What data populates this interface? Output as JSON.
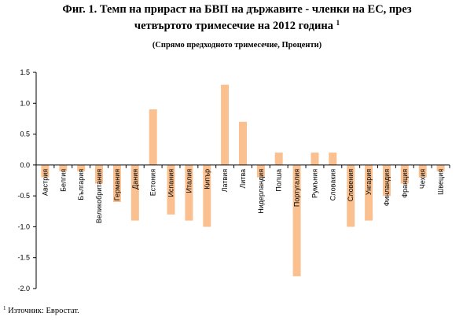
{
  "title_line1": "Фиг. 1. Темп на прираст на БВП на държавите - членки на ЕС, през",
  "title_line2": "четвъртото тримесечие на 2012 година",
  "title_sup": "1",
  "subtitle": "(Спрямо предходното тримесечие, Проценти)",
  "footnote_mark": "1",
  "footnote_text": " Източник: Евростат.",
  "colors": {
    "bar": "#FAC090",
    "axis": "#000000"
  },
  "chart_data": {
    "type": "bar",
    "title": "Фиг. 1. Темп на прираст на БВП на държавите - членки на ЕС, през четвъртото тримесечие на 2012 година",
    "categories": [
      "Австрия",
      "Белгия",
      "България",
      "Великобритания",
      "Германия",
      "Дания",
      "Естония",
      "Испания",
      "Италия",
      "Кипър",
      "Латвия",
      "Литва",
      "Нидерландия",
      "Полша",
      "Португалия",
      "Румъния",
      "Словакия",
      "Словения",
      "Унгария",
      "Финландия",
      "Франция",
      "Чехия",
      "Швеция"
    ],
    "values": [
      -0.2,
      -0.1,
      -0.1,
      -0.3,
      -0.6,
      -0.9,
      0.9,
      -0.8,
      -0.9,
      -1.0,
      1.3,
      0.7,
      -0.2,
      0.2,
      -1.8,
      0.2,
      0.2,
      -1.0,
      -0.9,
      -0.5,
      -0.3,
      -0.2,
      -0.1
    ],
    "ylim": [
      -2.0,
      1.5
    ],
    "yticks": [
      "1.5",
      "1.0",
      "0.5",
      "0.0",
      "-0.5",
      "-1.0",
      "-1.5",
      "-2.0"
    ],
    "ytick_values": [
      1.5,
      1.0,
      0.5,
      0.0,
      -0.5,
      -1.0,
      -1.5,
      -2.0
    ],
    "grid": false,
    "legend": "none"
  }
}
